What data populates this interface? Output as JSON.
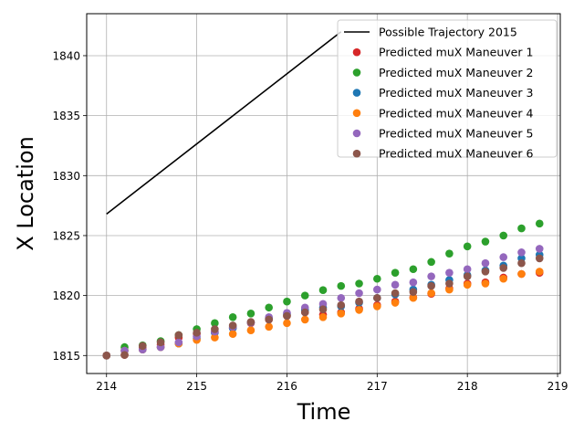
{
  "chart_data": {
    "type": "scatter",
    "title": "",
    "xlabel": "Time",
    "ylabel": "X Location",
    "xlim": [
      213.78,
      219.03
    ],
    "ylim": [
      1813.5,
      1843.5
    ],
    "xticks": [
      214,
      215,
      216,
      217,
      218,
      219
    ],
    "yticks": [
      1815,
      1820,
      1825,
      1830,
      1835,
      1840
    ],
    "grid": true,
    "legend_position": "upper-right",
    "x": [
      214.0,
      214.2,
      214.4,
      214.6,
      214.8,
      215.0,
      215.2,
      215.4,
      215.6,
      215.8,
      216.0,
      216.2,
      216.4,
      216.6,
      216.8,
      217.0,
      217.2,
      217.4,
      217.6,
      217.8,
      218.0,
      218.2,
      218.4,
      218.6,
      218.8
    ],
    "line": {
      "name": "Possible Trajectory 2015",
      "color": "#000000",
      "x": [
        214.0,
        216.6
      ],
      "y": [
        1826.8,
        1842.0
      ]
    },
    "series": [
      {
        "name": "Predicted muX Maneuver 1",
        "color": "#d62728",
        "values": [
          1815.0,
          1815.05,
          1815.6,
          1815.9,
          1816.5,
          1816.8,
          1816.95,
          1817.3,
          1817.7,
          1818.0,
          1818.3,
          1818.6,
          1818.4,
          1818.6,
          1818.9,
          1819.2,
          1819.5,
          1819.85,
          1820.15,
          1820.6,
          1821.0,
          1821.1,
          1821.5,
          1821.8,
          1821.9
        ]
      },
      {
        "name": "Predicted muX Maneuver 2",
        "color": "#2ca02c",
        "values": [
          1815.0,
          1815.7,
          1815.85,
          1816.2,
          1816.7,
          1817.2,
          1817.7,
          1818.2,
          1818.5,
          1819.0,
          1819.5,
          1820.0,
          1820.45,
          1820.8,
          1821.0,
          1821.4,
          1821.9,
          1822.2,
          1822.8,
          1823.5,
          1824.1,
          1824.5,
          1825.0,
          1825.6,
          1826.0
        ]
      },
      {
        "name": "Predicted muX Maneuver 3",
        "color": "#1f77b4",
        "values": [
          1815.0,
          1815.4,
          1815.5,
          1815.7,
          1816.0,
          1816.4,
          1816.9,
          1817.3,
          1817.75,
          1818.1,
          1818.45,
          1818.8,
          1819.0,
          1819.1,
          1819.4,
          1819.8,
          1820.1,
          1820.5,
          1820.9,
          1821.3,
          1821.7,
          1822.1,
          1822.5,
          1823.1,
          1823.4
        ]
      },
      {
        "name": "Predicted muX Maneuver 4",
        "color": "#ff7f0e",
        "values": [
          1815.0,
          1815.4,
          1815.5,
          1815.7,
          1816.0,
          1816.3,
          1816.5,
          1816.8,
          1817.1,
          1817.4,
          1817.7,
          1818.0,
          1818.2,
          1818.5,
          1818.8,
          1819.1,
          1819.4,
          1819.8,
          1820.2,
          1820.5,
          1820.9,
          1821.0,
          1821.4,
          1821.8,
          1822.0
        ]
      },
      {
        "name": "Predicted muX Maneuver 5",
        "color": "#9467bd",
        "values": [
          1815.0,
          1815.4,
          1815.5,
          1815.7,
          1816.1,
          1816.6,
          1817.0,
          1817.4,
          1817.75,
          1818.2,
          1818.55,
          1819.0,
          1819.3,
          1819.8,
          1820.2,
          1820.5,
          1820.9,
          1821.1,
          1821.6,
          1821.9,
          1822.2,
          1822.7,
          1823.2,
          1823.6,
          1823.9
        ]
      },
      {
        "name": "Predicted muX Maneuver 6",
        "color": "#8c564b",
        "values": [
          1815.0,
          1815.05,
          1815.8,
          1816.1,
          1816.7,
          1816.9,
          1817.2,
          1817.5,
          1817.8,
          1818.0,
          1818.3,
          1818.6,
          1818.85,
          1819.2,
          1819.5,
          1819.8,
          1820.2,
          1820.3,
          1820.8,
          1821.0,
          1821.6,
          1822.0,
          1822.3,
          1822.7,
          1823.1
        ]
      }
    ]
  }
}
